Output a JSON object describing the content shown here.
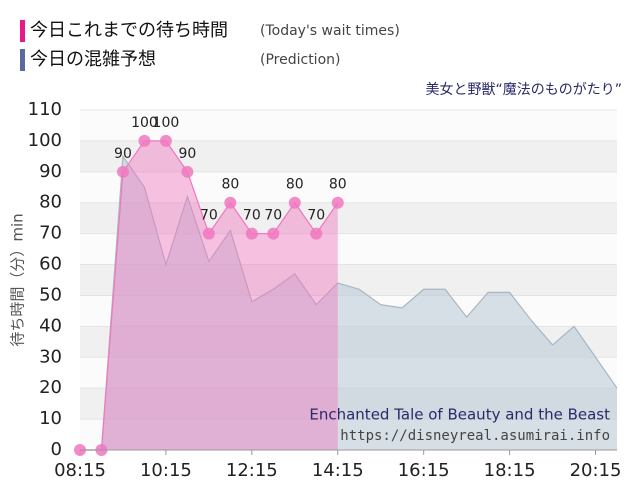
{
  "chart_data": {
    "type": "area",
    "subtitle": "美女と野獣“魔法のものがたり”",
    "ylabel": "待ち時間（分）min",
    "annotations": [
      "Enchanted Tale of Beauty and the Beast",
      "https://disneyreal.asumirai.info"
    ],
    "xlim": [
      "08:15",
      "20:45"
    ],
    "xticks": [
      "08:15",
      "10:15",
      "12:15",
      "14:15",
      "16:15",
      "18:15",
      "20:15"
    ],
    "ylim": [
      0,
      110
    ],
    "yticks": [
      0,
      10,
      20,
      30,
      40,
      50,
      60,
      70,
      80,
      90,
      100,
      110
    ],
    "grid": true,
    "series": [
      {
        "name": "今日これまでの待ち時間",
        "note": "(Today's wait times)",
        "color": "#f078c0",
        "legend_color": "#e8198b",
        "x": [
          "08:15",
          "08:45",
          "09:15",
          "09:45",
          "10:15",
          "10:45",
          "11:15",
          "11:45",
          "12:15",
          "12:45",
          "13:15",
          "13:45",
          "14:15"
        ],
        "values": [
          0,
          0,
          90,
          100,
          100,
          90,
          70,
          80,
          70,
          70,
          80,
          70,
          80
        ]
      },
      {
        "name": "今日の混雑予想",
        "note": "(Prediction)",
        "color": "#b8c8d6",
        "legend_color": "#5a6aa0",
        "x": [
          "08:15",
          "08:45",
          "09:15",
          "09:45",
          "10:15",
          "10:45",
          "11:15",
          "11:45",
          "12:15",
          "12:45",
          "13:15",
          "13:45",
          "14:15",
          "14:45",
          "15:15",
          "15:45",
          "16:15",
          "16:45",
          "17:15",
          "17:45",
          "18:15",
          "18:45",
          "19:15",
          "19:45",
          "20:15",
          "20:45"
        ],
        "values": [
          0,
          0,
          95,
          85,
          60,
          82,
          61,
          71,
          48,
          52,
          57,
          47,
          54,
          52,
          47,
          46,
          52,
          52,
          43,
          51,
          51,
          42,
          34,
          40,
          30,
          20
        ]
      }
    ]
  }
}
